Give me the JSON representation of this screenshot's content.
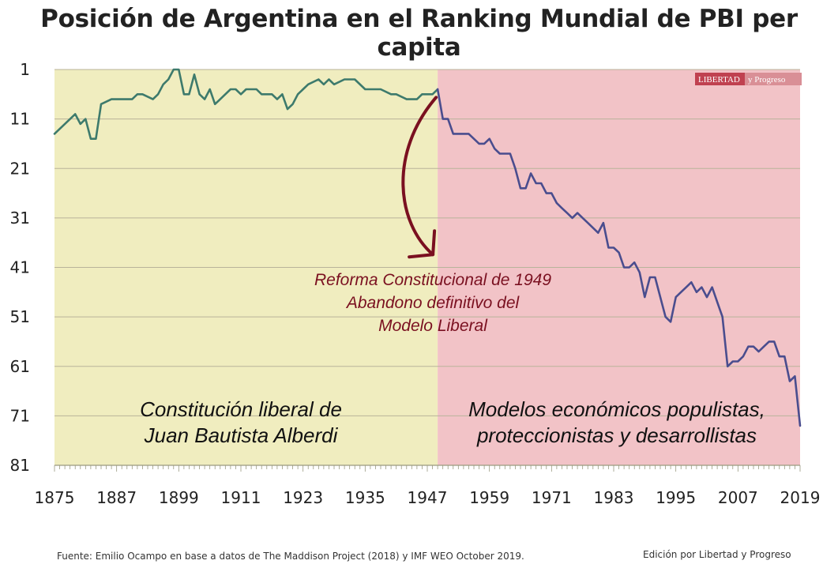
{
  "title": "Posición de Argentina en el Ranking Mundial de PBI per capita",
  "footer": {
    "source": "Fuente: Emilio Ocampo en base a datos de The Maddison Project (2018) y IMF WEO October 2019.",
    "edition": "Edición por Libertad y Progreso"
  },
  "logo": {
    "brand": "LIBERTAD",
    "suffix": "y Progreso"
  },
  "chart_data": {
    "type": "line",
    "title": "Posición de Argentina en el Ranking Mundial de PBI per capita",
    "xlabel": "",
    "ylabel": "",
    "xlim": [
      1875,
      2019
    ],
    "ylim": [
      81,
      1
    ],
    "y_inverted": true,
    "grid": "horizontal",
    "xticks": [
      1875,
      1887,
      1899,
      1911,
      1923,
      1935,
      1947,
      1959,
      1971,
      1983,
      1995,
      2007,
      2019
    ],
    "yticks": [
      1,
      11,
      21,
      31,
      41,
      51,
      61,
      71,
      81
    ],
    "colors": {
      "liberal_period": "#f0edbf",
      "populist_period": "#f2c3c7",
      "line_liberal": "#3d7a6c",
      "line_populist": "#4a4d8e",
      "annotation": "#7a1020",
      "gridline": "#b9b39a"
    },
    "regions": [
      {
        "x_start": 1875,
        "x_end": 1949,
        "label_lines": [
          "Constitución liberal de",
          "Juan Bautista Alberdi"
        ]
      },
      {
        "x_start": 1949,
        "x_end": 2019,
        "label_lines": [
          "Modelos económicos populistas,",
          "proteccionistas y desarrollistas"
        ]
      }
    ],
    "annotation": {
      "lines": [
        "Reforma Constitucional de 1949",
        "Abandono definitivo del",
        "Modelo Liberal"
      ],
      "arrow_from": [
        1949,
        6
      ],
      "arrow_to": [
        1949,
        40
      ]
    },
    "series": [
      {
        "x": [
          1875,
          1877,
          1879,
          1880,
          1881,
          1882,
          1883,
          1884,
          1886,
          1888,
          1890,
          1891,
          1892,
          1894,
          1895,
          1896,
          1897,
          1898,
          1899,
          1900,
          1901,
          1902,
          1903,
          1904,
          1905,
          1906,
          1907,
          1908,
          1909,
          1910,
          1911,
          1912,
          1914,
          1915,
          1917,
          1918,
          1919,
          1920,
          1921,
          1922,
          1923,
          1924,
          1926,
          1927,
          1928,
          1929,
          1931,
          1932,
          1933,
          1935,
          1936,
          1937,
          1938,
          1940,
          1941,
          1943,
          1945,
          1946,
          1947,
          1948,
          1949
        ],
        "y": [
          14,
          12,
          10,
          12,
          11,
          15,
          15,
          8,
          7,
          7,
          7,
          6,
          6,
          7,
          6,
          4,
          3,
          1,
          1,
          6,
          6,
          2,
          6,
          7,
          5,
          8,
          7,
          6,
          5,
          5,
          6,
          5,
          5,
          6,
          6,
          7,
          6,
          9,
          8,
          6,
          5,
          4,
          3,
          4,
          3,
          4,
          3,
          3,
          3,
          5,
          5,
          5,
          5,
          6,
          6,
          7,
          7,
          6,
          6,
          6,
          5
        ]
      },
      {
        "x": [
          1949,
          1950,
          1951,
          1952,
          1953,
          1955,
          1956,
          1957,
          1958,
          1959,
          1960,
          1961,
          1962,
          1963,
          1964,
          1965,
          1966,
          1967,
          1968,
          1969,
          1970,
          1971,
          1972,
          1973,
          1974,
          1975,
          1976,
          1977,
          1978,
          1979,
          1980,
          1981,
          1982,
          1983,
          1984,
          1985,
          1986,
          1987,
          1988,
          1989,
          1990,
          1991,
          1992,
          1993,
          1994,
          1995,
          1996,
          1997,
          1998,
          1999,
          2000,
          2001,
          2002,
          2003,
          2004,
          2005,
          2006,
          2007,
          2008,
          2009,
          2010,
          2011,
          2012,
          2013,
          2014,
          2015,
          2016,
          2017,
          2018,
          2019
        ],
        "y": [
          5,
          11,
          11,
          14,
          14,
          14,
          15,
          16,
          16,
          15,
          17,
          18,
          18,
          18,
          21,
          25,
          25,
          22,
          24,
          24,
          26,
          26,
          28,
          29,
          30,
          31,
          30,
          31,
          32,
          33,
          34,
          32,
          37,
          37,
          38,
          41,
          41,
          40,
          42,
          47,
          43,
          43,
          47,
          51,
          52,
          47,
          46,
          45,
          44,
          46,
          45,
          47,
          45,
          48,
          51,
          61,
          60,
          60,
          59,
          57,
          57,
          58,
          57,
          56,
          56,
          59,
          59,
          64,
          63,
          73
        ]
      }
    ]
  }
}
